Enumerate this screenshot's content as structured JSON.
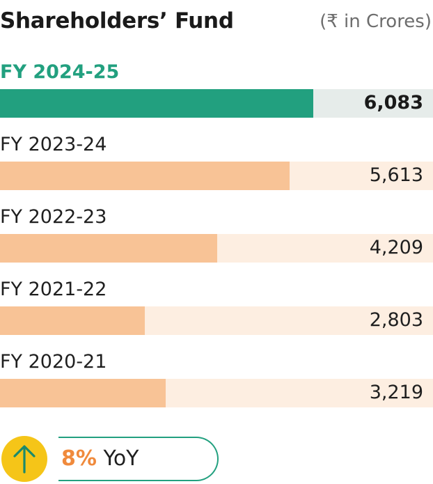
{
  "header": {
    "title": "Shareholders’ Fund",
    "unit": "(₹ in Crores)"
  },
  "colors": {
    "accent": "#22a07f",
    "bar_highlight": "#22a07f",
    "bar_default": "#f8c396",
    "track_default": "#fdeee1",
    "track_highlight": "#e6ecea",
    "yoy_percent": "#f08a3c",
    "yoy_circle": "#f5c518"
  },
  "chart_data": {
    "type": "bar",
    "orientation": "horizontal",
    "title": "Shareholders’ Fund",
    "unit": "(₹ in Crores)",
    "categories": [
      "FY 2024-25",
      "FY 2023-24",
      "FY 2022-23",
      "FY 2021-22",
      "FY 2020-21"
    ],
    "values": [
      6083,
      5613,
      4209,
      2803,
      3219
    ],
    "value_labels": [
      "6,083",
      "5,613",
      "4,209",
      "2,803",
      "3,219"
    ],
    "highlight_index": 0,
    "xlim": [
      0,
      8400
    ]
  },
  "yoy": {
    "percent": "8%",
    "label": "YoY",
    "icon": "arrow-up-icon"
  }
}
